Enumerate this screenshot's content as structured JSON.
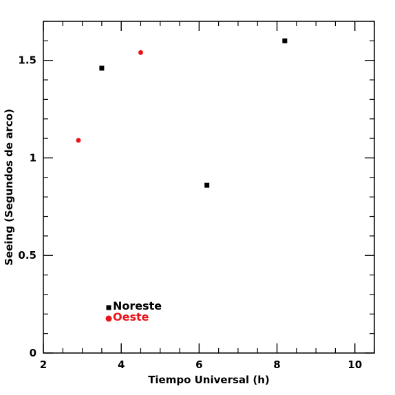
{
  "chart_data": {
    "type": "scatter",
    "xlabel": "Tiempo Universal (h)",
    "ylabel": "Seeing (Segundos de arco)",
    "xlim": [
      2,
      10.5
    ],
    "ylim": [
      0,
      1.7
    ],
    "xticks": [
      2,
      4,
      6,
      8,
      10
    ],
    "xtick_labels": [
      "2",
      "4",
      "6",
      "8",
      "10"
    ],
    "yticks": [
      0,
      0.5,
      1,
      1.5
    ],
    "ytick_labels": [
      "0",
      "0.5",
      "1",
      "1.5"
    ],
    "x_minor_step": 0.5,
    "y_minor_step": 0.1,
    "grid": false,
    "legend_position": "bottom-left (inside axes)",
    "series": [
      {
        "name": "Noreste",
        "marker": "square",
        "color": "#000000",
        "points": [
          {
            "x": 3.5,
            "y": 1.46
          },
          {
            "x": 6.2,
            "y": 0.86
          },
          {
            "x": 8.2,
            "y": 1.6
          }
        ]
      },
      {
        "name": "Oeste",
        "marker": "circle",
        "color": "#e8141b",
        "points": [
          {
            "x": 2.9,
            "y": 1.09
          },
          {
            "x": 4.5,
            "y": 1.54
          }
        ]
      }
    ]
  }
}
